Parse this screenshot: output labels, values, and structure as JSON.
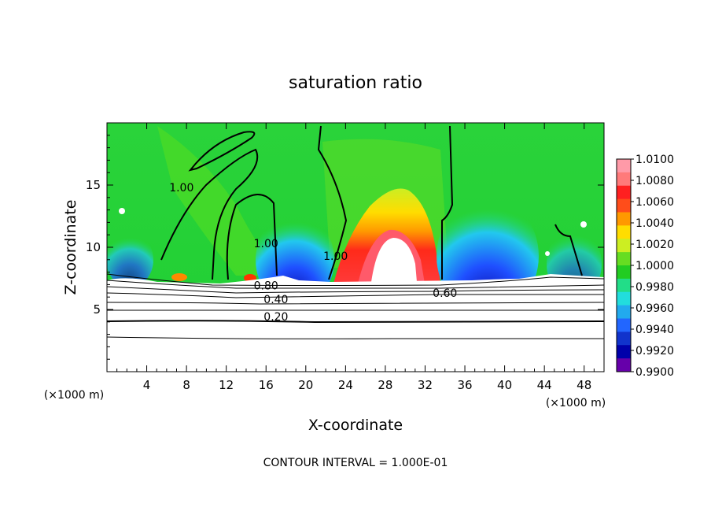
{
  "chart_data": {
    "type": "heatmap",
    "title": "saturation ratio",
    "xlabel": "X-coordinate",
    "ylabel": "Z-coordinate",
    "x_unit": "(×1000 m)",
    "xlim": [
      0,
      50
    ],
    "ylim": [
      0,
      20
    ],
    "x_ticks": [
      4,
      8,
      12,
      16,
      20,
      24,
      28,
      32,
      36,
      40,
      44,
      48
    ],
    "y_ticks": [
      5,
      10,
      15
    ],
    "colorbar": {
      "labels": [
        "1.0100",
        "1.0080",
        "1.0060",
        "1.0040",
        "1.0020",
        "1.0000",
        "0.9980",
        "0.9960",
        "0.9940",
        "0.9920",
        "0.9900"
      ],
      "colors": [
        "#ff9aa8",
        "#ff7a7a",
        "#ff2020",
        "#ff4d1a",
        "#ff9900",
        "#ffdd00",
        "#ccee22",
        "#66dd22",
        "#22cc22",
        "#22dd88",
        "#22dddd",
        "#22aaee",
        "#2266ff",
        "#1133cc",
        "#0000aa",
        "#6600aa"
      ]
    },
    "contour_labels": [
      {
        "text": "1.00",
        "x": 7.5,
        "z": 14.5
      },
      {
        "text": "1.00",
        "x": 16.0,
        "z": 10.0
      },
      {
        "text": "1.00",
        "x": 23.0,
        "z": 9.0
      },
      {
        "text": "0.80",
        "x": 16.0,
        "z": 6.6
      },
      {
        "text": "0.40",
        "x": 17.0,
        "z": 5.5
      },
      {
        "text": "0.20",
        "x": 17.0,
        "z": 4.1
      },
      {
        "text": "0.60",
        "x": 34.0,
        "z": 6.0
      }
    ],
    "footnote": "CONTOUR INTERVAL = 1.000E-01"
  }
}
